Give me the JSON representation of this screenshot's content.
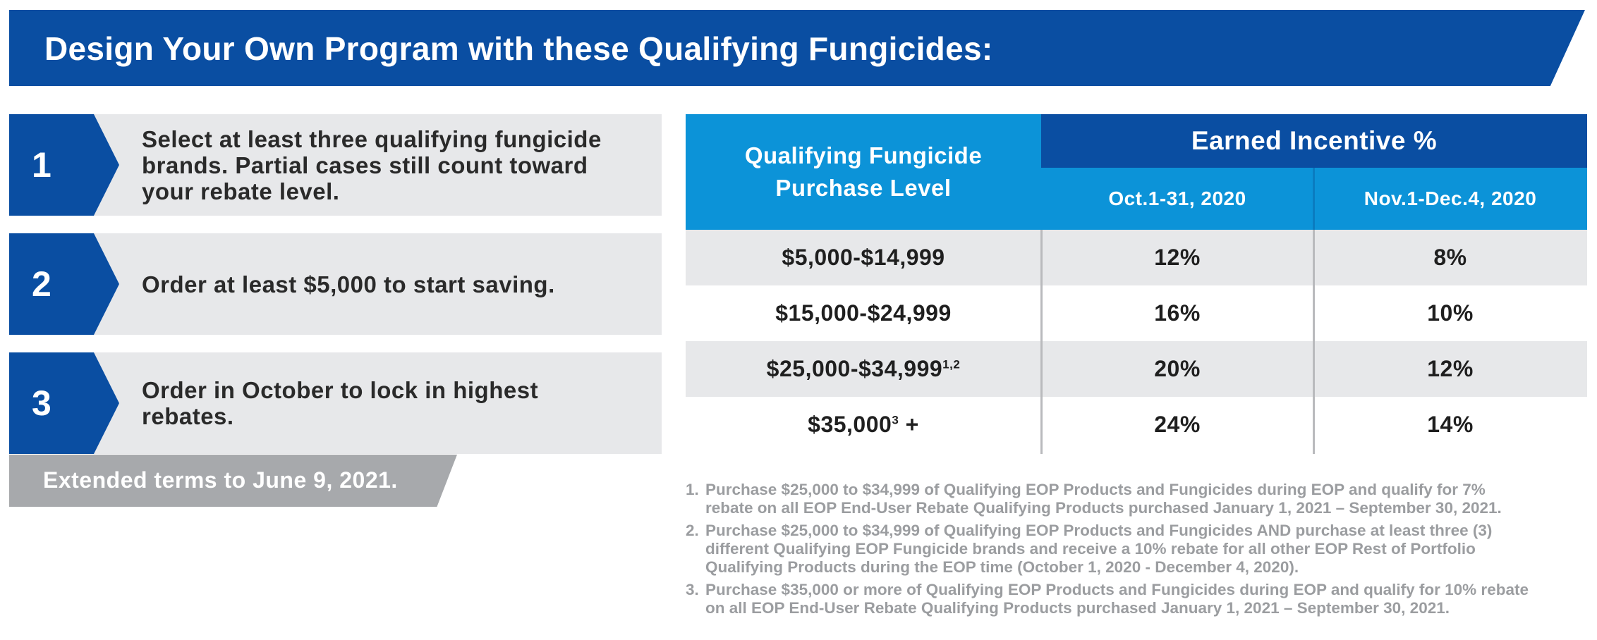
{
  "header": {
    "title": "Design Your Own Program with these Qualifying Fungicides:"
  },
  "steps": [
    {
      "number": "1",
      "lines": [
        "Select at least three qualifying fungicide",
        "brands. Partial cases still count toward",
        "your rebate level."
      ]
    },
    {
      "number": "2",
      "lines": [
        "Order at least $5,000 to start saving."
      ]
    },
    {
      "number": "3",
      "lines": [
        "Order in October to lock in highest",
        "rebates."
      ]
    }
  ],
  "extended_terms": "Extended terms to June 9, 2021.",
  "table": {
    "purchase_level_header": [
      "Qualifying Fungicide",
      "Purchase Level"
    ],
    "earned_header": "Earned Incentive %",
    "period_headers": [
      "Oct.1-31, 2020",
      "Nov.1-Dec.4, 2020"
    ],
    "rows": [
      {
        "level": "$5,000-$14,999",
        "level_sup": "",
        "level_suffix": "",
        "oct": "12%",
        "nov": "8%"
      },
      {
        "level": "$15,000-$24,999",
        "level_sup": "",
        "level_suffix": "",
        "oct": "16%",
        "nov": "10%"
      },
      {
        "level": "$25,000-$34,999",
        "level_sup": "1,2",
        "level_suffix": "",
        "oct": "20%",
        "nov": "12%"
      },
      {
        "level": "$35,000",
        "level_sup": "3",
        "level_suffix": " +",
        "oct": "24%",
        "nov": "14%"
      }
    ]
  },
  "footnotes": [
    {
      "number": "1.",
      "lines": [
        "Purchase $25,000 to $34,999 of Qualifying EOP Products and Fungicides during EOP and qualify for 7%",
        "rebate on all EOP End-User Rebate Qualifying Products purchased January 1, 2021 – September 30, 2021."
      ]
    },
    {
      "number": "2.",
      "lines": [
        "Purchase $25,000 to $34,999 of Qualifying EOP Products and Fungicides AND purchase at least three (3)",
        "different Qualifying EOP Fungicide brands and receive a 10% rebate for all other EOP Rest of Portfolio",
        "Qualifying Products during the EOP time (October 1, 2020 - December 4, 2020)."
      ]
    },
    {
      "number": "3.",
      "lines": [
        "Purchase $35,000 or more of Qualifying EOP Products and Fungicides during EOP and qualify for 10% rebate",
        "on all EOP End-User Rebate Qualifying Products purchased January 1, 2021 – September 30, 2021."
      ]
    }
  ],
  "colors": {
    "dark_blue": "#0a4ea2",
    "light_blue": "#0c93d8",
    "gray": "#e7e8ea",
    "note_gray": "#9b9da0"
  }
}
